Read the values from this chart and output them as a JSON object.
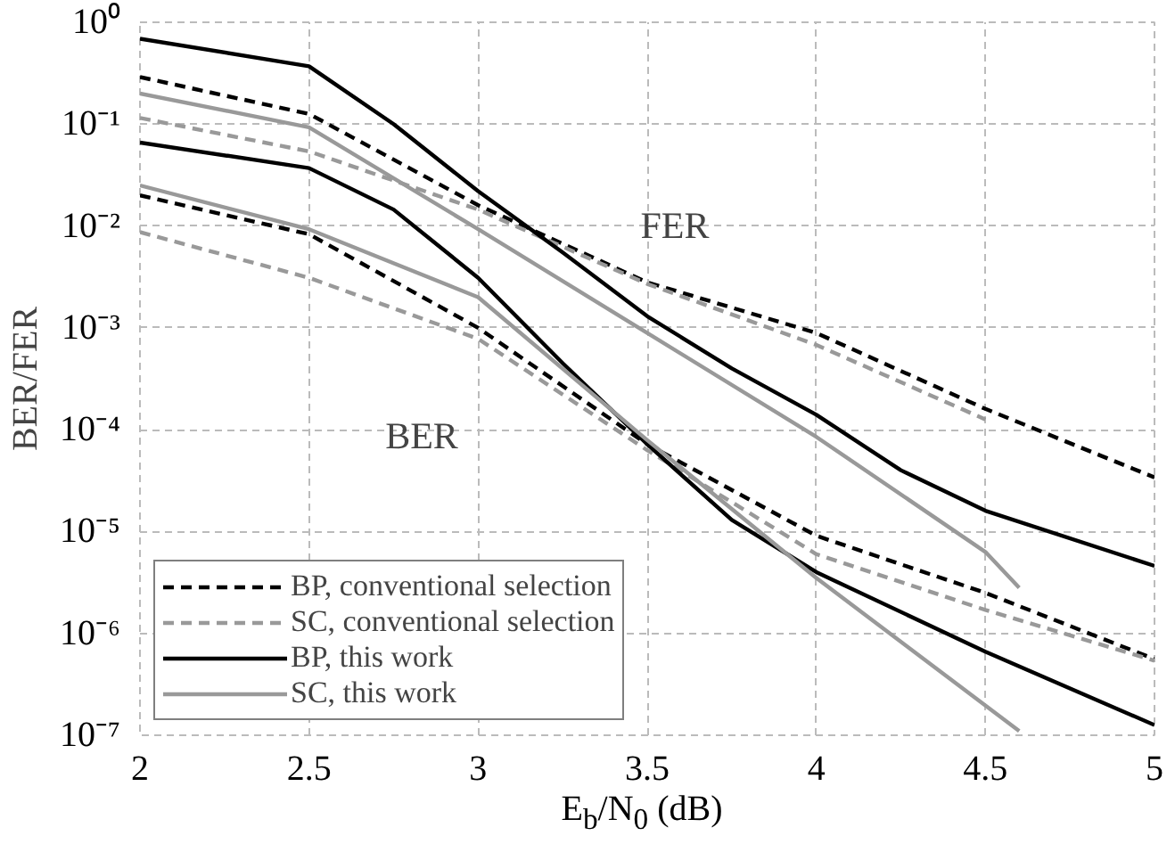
{
  "chart_data": {
    "type": "line",
    "xlabel": "E$_{b}$/N$_{0}$ (dB)",
    "ylabel": "BER/FER",
    "log": "y",
    "grid": true,
    "legend": "bottom left",
    "marker": "none",
    "xlim": [
      2,
      5
    ],
    "xticks": [
      2,
      2.5,
      3,
      3.5,
      4,
      4.5,
      5
    ],
    "ylim": [
      1e-07,
      1
    ],
    "yticks": [
      {
        "value": 1e-07,
        "label": "10⁻⁷"
      },
      {
        "value": 1e-06,
        "label": "10⁻⁶"
      },
      {
        "value": 1e-05,
        "label": "10⁻⁵"
      },
      {
        "value": 0.0001,
        "label": "10⁻⁴"
      },
      {
        "value": 0.001,
        "label": "10⁻³"
      },
      {
        "value": 0.01,
        "label": "10⁻²"
      },
      {
        "value": 0.1,
        "label": "10⁻¹"
      },
      {
        "value": 1,
        "label": "10⁰"
      }
    ],
    "annotations": [
      "FER",
      "BER"
    ],
    "series": [
      {
        "name": "BP, conventional selection",
        "color": "#000000",
        "line_style": "dashed",
        "x": [
          2,
          2.5,
          3,
          3.5,
          4,
          4.5,
          5
        ],
        "values": [
          0.29,
          0.126,
          0.016,
          0.0028,
          0.00089,
          0.00016,
          3.4e-05
        ]
      },
      {
        "name": "SC, conventional selection",
        "color": "#999999",
        "line_style": "dashed",
        "x": [
          2,
          2.5,
          3,
          3.5,
          4,
          4.5
        ],
        "values": [
          0.115,
          0.054,
          0.0145,
          0.0027,
          0.00068,
          0.000126
        ]
      },
      {
        "name": "BP, this work",
        "color": "#000000",
        "line_style": "solid",
        "x": [
          2,
          2.5,
          2.75,
          3,
          3.25,
          3.5,
          3.75,
          4,
          4.25,
          4.5,
          5
        ],
        "values": [
          0.69,
          0.37,
          0.1,
          0.022,
          0.0055,
          0.0013,
          0.0004,
          0.00014,
          4e-05,
          1.6e-05,
          4.6e-06
        ]
      },
      {
        "name": "SC, this work",
        "color": "#999999",
        "line_style": "solid",
        "x": [
          2,
          2.5,
          3,
          3.5,
          4,
          4.5,
          4.6
        ],
        "values": [
          0.2,
          0.093,
          0.0093,
          0.00089,
          8.5e-05,
          6.3e-06,
          2.8e-06
        ]
      },
      {
        "color": "#000000",
        "line_style": "dashed",
        "x": [
          2,
          2.5,
          3,
          3.5,
          4,
          4.5,
          5
        ],
        "values": [
          0.02,
          0.0083,
          0.001,
          7.2e-05,
          9.1e-06,
          2.5e-06,
          5.6e-07
        ]
      },
      {
        "color": "#999999",
        "line_style": "dashed",
        "x": [
          2,
          2.5,
          3,
          3.5,
          4,
          4.5,
          5
        ],
        "values": [
          0.0087,
          0.0031,
          0.00078,
          6.3e-05,
          6e-06,
          1.7e-06,
          5.4e-07
        ]
      },
      {
        "color": "#000000",
        "line_style": "solid",
        "x": [
          2,
          2.5,
          2.75,
          3,
          3.25,
          3.5,
          3.75,
          4,
          4.5,
          5
        ],
        "values": [
          0.066,
          0.037,
          0.0145,
          0.0031,
          0.00045,
          7.2e-05,
          1.3e-05,
          4e-06,
          6.6e-07,
          1.26e-07
        ]
      },
      {
        "color": "#999999",
        "line_style": "solid",
        "x": [
          2,
          2.5,
          3,
          3.5,
          4,
          4.6
        ],
        "values": [
          0.025,
          0.0093,
          0.002,
          7.9e-05,
          3.5e-06,
          1.1e-07
        ]
      }
    ]
  }
}
